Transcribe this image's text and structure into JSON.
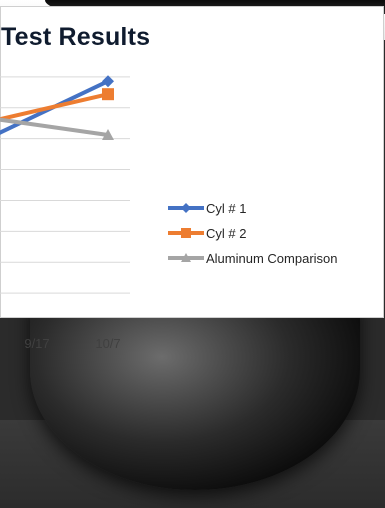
{
  "chart_data": {
    "type": "line",
    "title": "Test Results",
    "x": [
      "9/17",
      "10/7"
    ],
    "xlabel": "",
    "ylabel": "",
    "series": [
      {
        "name": "Cyl # 1",
        "color": "#4472c4",
        "marker": "diamond",
        "values": [
          35.6,
          39.3
        ]
      },
      {
        "name": "Cyl # 2",
        "color": "#ed7d31",
        "marker": "square",
        "values": [
          35.4,
          37.2
        ]
      },
      {
        "name": "Aluminum Comparison",
        "color": "#a5a5a5",
        "marker": "triangle",
        "values": [
          31.7,
          30.6
        ]
      }
    ],
    "ylim": [
      0,
      45
    ],
    "gridlines": [
      5,
      10,
      15,
      20,
      25,
      30,
      35,
      40
    ],
    "grid": true,
    "legend": "right"
  }
}
